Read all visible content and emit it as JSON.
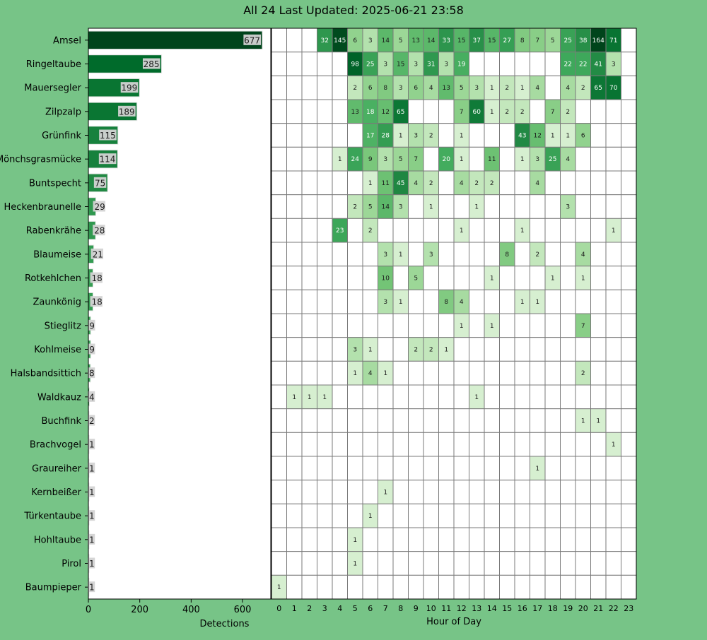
{
  "title": "All 24 Last Updated: 2025-06-21 23:58",
  "chart_data": [
    {
      "type": "bar",
      "orientation": "horizontal",
      "categories": [
        "Amsel",
        "Ringeltaube",
        "Mauersegler",
        "Zilpzalp",
        "Grünfink",
        "Mönchsgrasmücke",
        "Buntspecht",
        "Heckenbraunelle",
        "Rabenkrähe",
        "Blaumeise",
        "Rotkehlchen",
        "Zaunkönig",
        "Stieglitz",
        "Kohlmeise",
        "Halsbandsittich",
        "Waldkauz",
        "Buchfink",
        "Brachvogel",
        "Graureiher",
        "Kernbeißer",
        "Türkentaube",
        "Hohltaube",
        "Pirol",
        "Baumpieper"
      ],
      "values": [
        677,
        285,
        199,
        189,
        115,
        114,
        75,
        29,
        28,
        21,
        18,
        18,
        9,
        9,
        8,
        4,
        2,
        1,
        1,
        1,
        1,
        1,
        1,
        1
      ],
      "xlabel": "Detections",
      "xlim": [
        0,
        710
      ],
      "xticks": [
        0,
        200,
        400,
        600
      ]
    },
    {
      "type": "heatmap",
      "xlabel": "Hour of Day",
      "x": [
        "0",
        "1",
        "2",
        "3",
        "4",
        "5",
        "6",
        "7",
        "8",
        "9",
        "10",
        "11",
        "12",
        "13",
        "14",
        "15",
        "16",
        "17",
        "18",
        "19",
        "20",
        "21",
        "22",
        "23"
      ],
      "highlight_hour": "23",
      "highlight_color": "#e8f53a",
      "rows": [
        [
          0,
          0,
          0,
          32,
          145,
          6,
          3,
          14,
          5,
          13,
          14,
          33,
          15,
          37,
          15,
          27,
          8,
          7,
          5,
          25,
          38,
          164,
          71,
          0
        ],
        [
          0,
          0,
          0,
          0,
          0,
          98,
          25,
          3,
          15,
          3,
          31,
          3,
          19,
          0,
          0,
          0,
          0,
          0,
          0,
          22,
          22,
          41,
          3,
          0
        ],
        [
          0,
          0,
          0,
          0,
          0,
          2,
          6,
          8,
          3,
          6,
          4,
          13,
          5,
          3,
          1,
          2,
          1,
          4,
          0,
          4,
          2,
          65,
          70,
          0
        ],
        [
          0,
          0,
          0,
          0,
          0,
          13,
          18,
          12,
          65,
          0,
          0,
          0,
          7,
          60,
          1,
          2,
          2,
          0,
          7,
          2,
          0,
          0,
          0,
          0
        ],
        [
          0,
          0,
          0,
          0,
          0,
          0,
          17,
          28,
          1,
          3,
          2,
          0,
          1,
          0,
          0,
          0,
          43,
          12,
          1,
          1,
          6,
          0,
          0,
          0
        ],
        [
          0,
          0,
          0,
          0,
          1,
          24,
          9,
          3,
          5,
          7,
          0,
          20,
          1,
          0,
          11,
          0,
          1,
          3,
          25,
          4,
          0,
          0,
          0,
          0
        ],
        [
          0,
          0,
          0,
          0,
          0,
          0,
          1,
          11,
          45,
          4,
          2,
          0,
          4,
          2,
          2,
          0,
          0,
          4,
          0,
          0,
          0,
          0,
          0,
          0
        ],
        [
          0,
          0,
          0,
          0,
          0,
          2,
          5,
          14,
          3,
          0,
          1,
          0,
          0,
          1,
          0,
          0,
          0,
          0,
          0,
          3,
          0,
          0,
          0,
          0
        ],
        [
          0,
          0,
          0,
          0,
          23,
          0,
          2,
          0,
          0,
          0,
          0,
          0,
          1,
          0,
          0,
          0,
          1,
          0,
          0,
          0,
          0,
          0,
          1,
          0
        ],
        [
          0,
          0,
          0,
          0,
          0,
          0,
          0,
          3,
          1,
          0,
          3,
          0,
          0,
          0,
          0,
          8,
          0,
          2,
          0,
          0,
          4,
          0,
          0,
          0
        ],
        [
          0,
          0,
          0,
          0,
          0,
          0,
          0,
          10,
          0,
          5,
          0,
          0,
          0,
          0,
          1,
          0,
          0,
          0,
          1,
          0,
          1,
          0,
          0,
          0
        ],
        [
          0,
          0,
          0,
          0,
          0,
          0,
          0,
          3,
          1,
          0,
          0,
          8,
          4,
          0,
          0,
          0,
          1,
          1,
          0,
          0,
          0,
          0,
          0,
          0
        ],
        [
          0,
          0,
          0,
          0,
          0,
          0,
          0,
          0,
          0,
          0,
          0,
          0,
          1,
          0,
          1,
          0,
          0,
          0,
          0,
          0,
          7,
          0,
          0,
          0
        ],
        [
          0,
          0,
          0,
          0,
          0,
          3,
          1,
          0,
          0,
          2,
          2,
          1,
          0,
          0,
          0,
          0,
          0,
          0,
          0,
          0,
          0,
          0,
          0,
          0
        ],
        [
          0,
          0,
          0,
          0,
          0,
          1,
          4,
          1,
          0,
          0,
          0,
          0,
          0,
          0,
          0,
          0,
          0,
          0,
          0,
          0,
          2,
          0,
          0,
          0
        ],
        [
          0,
          1,
          1,
          1,
          0,
          0,
          0,
          0,
          0,
          0,
          0,
          0,
          0,
          1,
          0,
          0,
          0,
          0,
          0,
          0,
          0,
          0,
          0,
          0
        ],
        [
          0,
          0,
          0,
          0,
          0,
          0,
          0,
          0,
          0,
          0,
          0,
          0,
          0,
          0,
          0,
          0,
          0,
          0,
          0,
          0,
          1,
          1,
          0,
          0
        ],
        [
          0,
          0,
          0,
          0,
          0,
          0,
          0,
          0,
          0,
          0,
          0,
          0,
          0,
          0,
          0,
          0,
          0,
          0,
          0,
          0,
          0,
          0,
          1,
          0
        ],
        [
          0,
          0,
          0,
          0,
          0,
          0,
          0,
          0,
          0,
          0,
          0,
          0,
          0,
          0,
          0,
          0,
          0,
          1,
          0,
          0,
          0,
          0,
          0,
          0
        ],
        [
          0,
          0,
          0,
          0,
          0,
          0,
          0,
          1,
          0,
          0,
          0,
          0,
          0,
          0,
          0,
          0,
          0,
          0,
          0,
          0,
          0,
          0,
          0,
          0
        ],
        [
          0,
          0,
          0,
          0,
          0,
          0,
          1,
          0,
          0,
          0,
          0,
          0,
          0,
          0,
          0,
          0,
          0,
          0,
          0,
          0,
          0,
          0,
          0,
          0
        ],
        [
          0,
          0,
          0,
          0,
          0,
          1,
          0,
          0,
          0,
          0,
          0,
          0,
          0,
          0,
          0,
          0,
          0,
          0,
          0,
          0,
          0,
          0,
          0,
          0
        ],
        [
          0,
          0,
          0,
          0,
          0,
          1,
          0,
          0,
          0,
          0,
          0,
          0,
          0,
          0,
          0,
          0,
          0,
          0,
          0,
          0,
          0,
          0,
          0,
          0
        ],
        [
          1,
          0,
          0,
          0,
          0,
          0,
          0,
          0,
          0,
          0,
          0,
          0,
          0,
          0,
          0,
          0,
          0,
          0,
          0,
          0,
          0,
          0,
          0,
          0
        ]
      ]
    }
  ]
}
